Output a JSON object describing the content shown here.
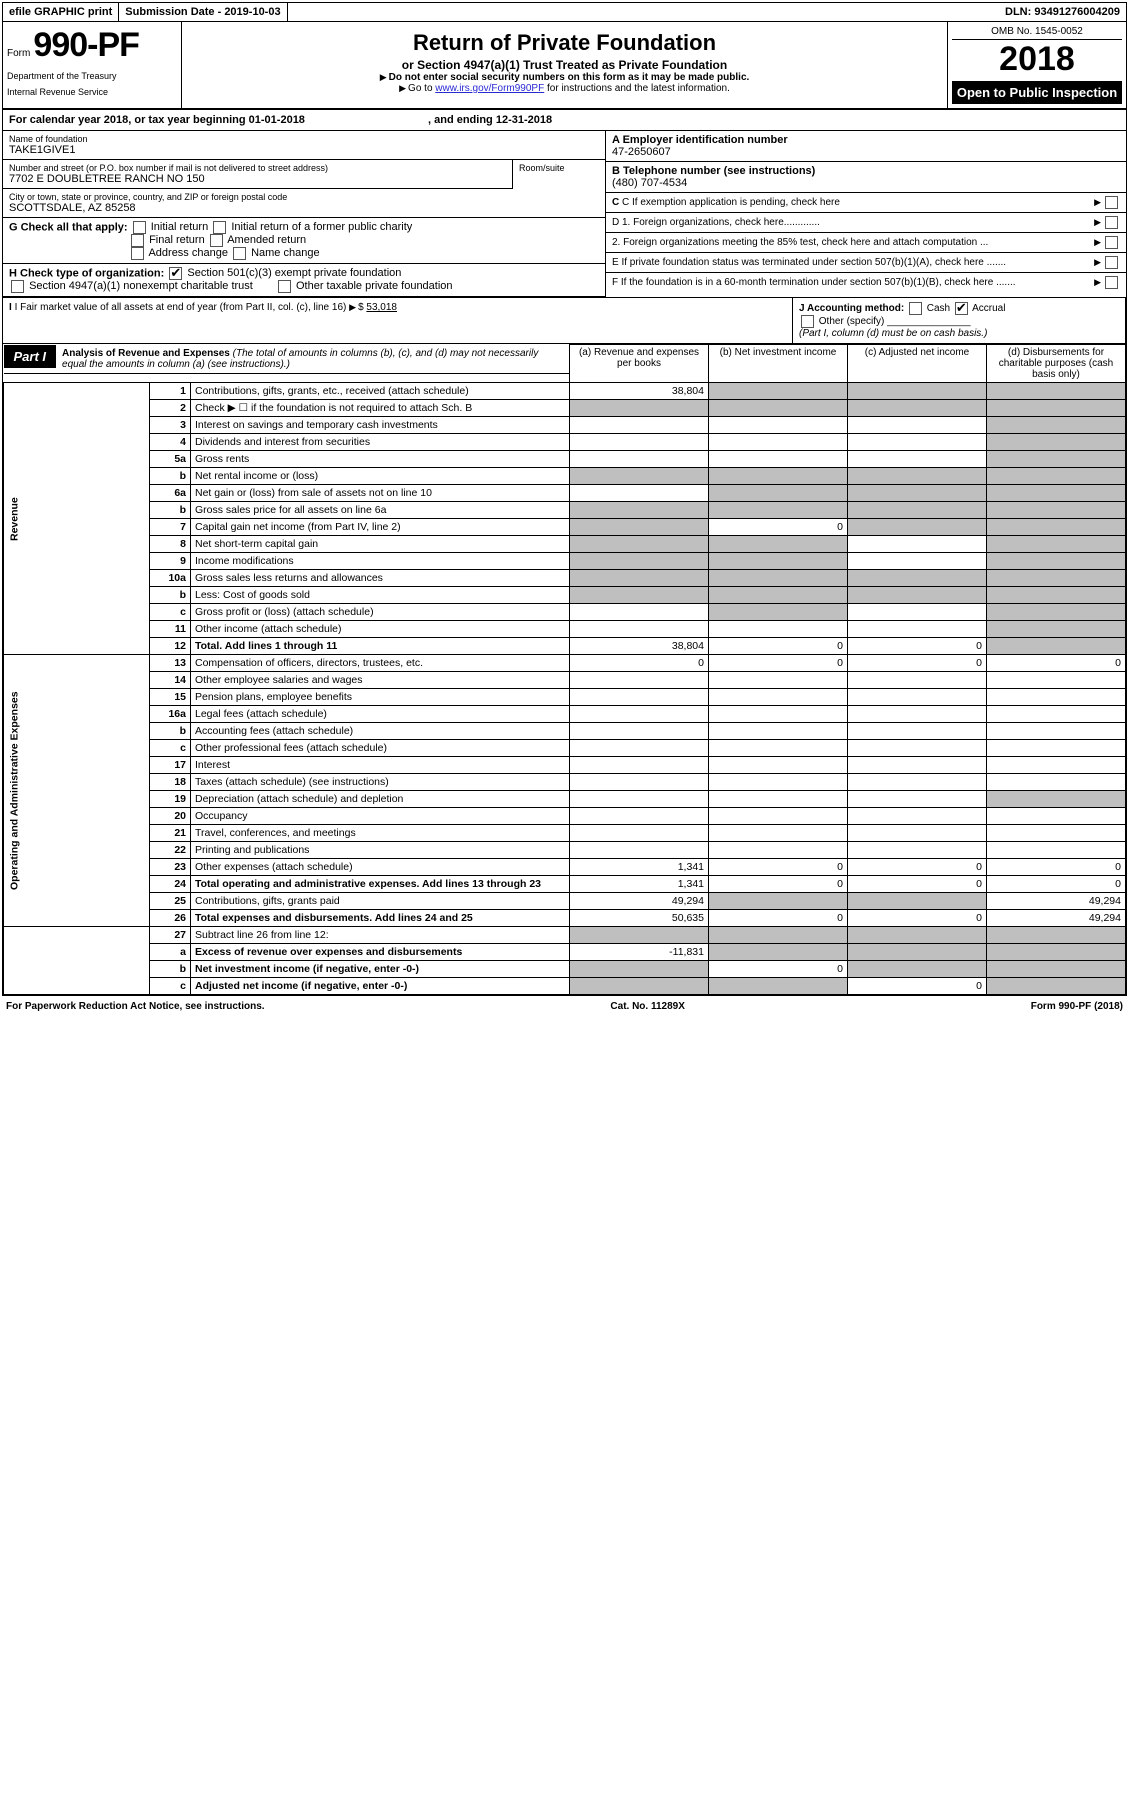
{
  "top_bar": {
    "efile": "efile GRAPHIC print",
    "submission": "Submission Date - 2019-10-03",
    "dln": "DLN: 93491276004209"
  },
  "header": {
    "form_label": "Form",
    "form_number": "990-PF",
    "dept_line1": "Department of the Treasury",
    "dept_line2": "Internal Revenue Service",
    "title": "Return of Private Foundation",
    "subtitle": "or Section 4947(a)(1) Trust Treated as Private Foundation",
    "instr1": "Do not enter social security numbers on this form as it may be made public.",
    "instr2_pre": "Go to ",
    "instr2_link": "www.irs.gov/Form990PF",
    "instr2_post": " for instructions and the latest information.",
    "omb": "OMB No. 1545-0052",
    "year": "2018",
    "open": "Open to Public Inspection"
  },
  "cal_year": {
    "label_pre": "For calendar year 2018, or tax year beginning ",
    "begin": "01-01-2018",
    "label_mid": " , and ending ",
    "end": "12-31-2018"
  },
  "name_block": {
    "label": "Name of foundation",
    "value": "TAKE1GIVE1"
  },
  "ein_block": {
    "label": "A Employer identification number",
    "value": "47-2650607"
  },
  "address_street": {
    "label": "Number and street (or P.O. box number if mail is not delivered to street address)",
    "room_label": "Room/suite",
    "value": "7702 E DOUBLETREE RANCH NO 150"
  },
  "phone_block": {
    "label": "B Telephone number (see instructions)",
    "value": "(480) 707-4534"
  },
  "city_block": {
    "label": "City or town, state or province, country, and ZIP or foreign postal code",
    "value": "SCOTTSDALE, AZ  85258"
  },
  "c_block": "C If exemption application is pending, check here",
  "g_checks": {
    "label": "G Check all that apply:",
    "items": [
      "Initial return",
      "Initial return of a former public charity",
      "Final return",
      "Amended return",
      "Address change",
      "Name change"
    ]
  },
  "d_block": {
    "d1": "D 1. Foreign organizations, check here.............",
    "d2": "2. Foreign organizations meeting the 85% test, check here and attach computation ..."
  },
  "h_block": {
    "label": "H Check type of organization:",
    "opt1": "Section 501(c)(3) exempt private foundation",
    "opt2": "Section 4947(a)(1) nonexempt charitable trust",
    "opt3": "Other taxable private foundation"
  },
  "e_block": "E If private foundation status was terminated under section 507(b)(1)(A), check here .......",
  "i_block": {
    "label": "I Fair market value of all assets at end of year (from Part II, col. (c), line 16)",
    "amt_label": "$",
    "amt": "53,018"
  },
  "j_block": {
    "label": "J Accounting method:",
    "cash": "Cash",
    "accrual": "Accrual",
    "other": "Other (specify)",
    "note": "(Part I, column (d) must be on cash basis.)"
  },
  "f_block": "F If the foundation is in a 60-month termination under section 507(b)(1)(B), check here .......",
  "part1": {
    "badge": "Part I",
    "title": "Analysis of Revenue and Expenses",
    "subtitle": "(The total of amounts in columns (b), (c), and (d) may not necessarily equal the amounts in column (a) (see instructions).)"
  },
  "columns": {
    "a": "(a) Revenue and expenses per books",
    "b": "(b) Net investment income",
    "c": "(c) Adjusted net income",
    "d": "(d) Disbursements for charitable purposes (cash basis only)"
  },
  "side_labels": {
    "revenue": "Revenue",
    "expenses": "Operating and Administrative Expenses"
  },
  "rows_revenue": [
    {
      "n": "1",
      "desc": "Contributions, gifts, grants, etc., received (attach schedule)",
      "a": "38,804",
      "b_shade": true,
      "c_shade": true,
      "d_shade": true
    },
    {
      "n": "2",
      "desc": "Check ▶ ☐ if the foundation is not required to attach Sch. B",
      "a_shade": true,
      "b_shade": true,
      "c_shade": true,
      "d_shade": true
    },
    {
      "n": "3",
      "desc": "Interest on savings and temporary cash investments",
      "d_shade": true
    },
    {
      "n": "4",
      "desc": "Dividends and interest from securities",
      "d_shade": true
    },
    {
      "n": "5a",
      "desc": "Gross rents",
      "d_shade": true
    },
    {
      "n": "b",
      "desc": "Net rental income or (loss)",
      "a_shade": true,
      "b_shade": true,
      "c_shade": true,
      "d_shade": true
    },
    {
      "n": "6a",
      "desc": "Net gain or (loss) from sale of assets not on line 10",
      "b_shade": true,
      "c_shade": true,
      "d_shade": true
    },
    {
      "n": "b",
      "desc": "Gross sales price for all assets on line 6a",
      "a_shade": true,
      "b_shade": true,
      "c_shade": true,
      "d_shade": true
    },
    {
      "n": "7",
      "desc": "Capital gain net income (from Part IV, line 2)",
      "a_shade": true,
      "b": "0",
      "c_shade": true,
      "d_shade": true
    },
    {
      "n": "8",
      "desc": "Net short-term capital gain",
      "a_shade": true,
      "b_shade": true,
      "d_shade": true
    },
    {
      "n": "9",
      "desc": "Income modifications",
      "a_shade": true,
      "b_shade": true,
      "d_shade": true
    },
    {
      "n": "10a",
      "desc": "Gross sales less returns and allowances",
      "a_shade": true,
      "b_shade": true,
      "c_shade": true,
      "d_shade": true
    },
    {
      "n": "b",
      "desc": "Less: Cost of goods sold",
      "a_shade": true,
      "b_shade": true,
      "c_shade": true,
      "d_shade": true
    },
    {
      "n": "c",
      "desc": "Gross profit or (loss) (attach schedule)",
      "b_shade": true,
      "d_shade": true
    },
    {
      "n": "11",
      "desc": "Other income (attach schedule)",
      "d_shade": true
    },
    {
      "n": "12",
      "desc": "Total. Add lines 1 through 11",
      "bold": true,
      "a": "38,804",
      "b": "0",
      "c": "0",
      "d_shade": true
    }
  ],
  "rows_expenses": [
    {
      "n": "13",
      "desc": "Compensation of officers, directors, trustees, etc.",
      "a": "0",
      "b": "0",
      "c": "0",
      "d": "0"
    },
    {
      "n": "14",
      "desc": "Other employee salaries and wages"
    },
    {
      "n": "15",
      "desc": "Pension plans, employee benefits"
    },
    {
      "n": "16a",
      "desc": "Legal fees (attach schedule)"
    },
    {
      "n": "b",
      "desc": "Accounting fees (attach schedule)"
    },
    {
      "n": "c",
      "desc": "Other professional fees (attach schedule)"
    },
    {
      "n": "17",
      "desc": "Interest"
    },
    {
      "n": "18",
      "desc": "Taxes (attach schedule) (see instructions)"
    },
    {
      "n": "19",
      "desc": "Depreciation (attach schedule) and depletion",
      "d_shade": true
    },
    {
      "n": "20",
      "desc": "Occupancy"
    },
    {
      "n": "21",
      "desc": "Travel, conferences, and meetings"
    },
    {
      "n": "22",
      "desc": "Printing and publications"
    },
    {
      "n": "23",
      "desc": "Other expenses (attach schedule)",
      "a": "1,341",
      "b": "0",
      "c": "0",
      "d": "0"
    },
    {
      "n": "24",
      "desc": "Total operating and administrative expenses. Add lines 13 through 23",
      "bold": true,
      "a": "1,341",
      "b": "0",
      "c": "0",
      "d": "0"
    },
    {
      "n": "25",
      "desc": "Contributions, gifts, grants paid",
      "a": "49,294",
      "b_shade": true,
      "c_shade": true,
      "d": "49,294"
    },
    {
      "n": "26",
      "desc": "Total expenses and disbursements. Add lines 24 and 25",
      "bold": true,
      "a": "50,635",
      "b": "0",
      "c": "0",
      "d": "49,294"
    }
  ],
  "rows_bottom": [
    {
      "n": "27",
      "desc": "Subtract line 26 from line 12:",
      "a_shade": true,
      "b_shade": true,
      "c_shade": true,
      "d_shade": true
    },
    {
      "n": "a",
      "desc": "Excess of revenue over expenses and disbursements",
      "bold": true,
      "a": "-11,831",
      "b_shade": true,
      "c_shade": true,
      "d_shade": true
    },
    {
      "n": "b",
      "desc": "Net investment income (if negative, enter -0-)",
      "bold": true,
      "a_shade": true,
      "b": "0",
      "c_shade": true,
      "d_shade": true
    },
    {
      "n": "c",
      "desc": "Adjusted net income (if negative, enter -0-)",
      "bold": true,
      "a_shade": true,
      "b_shade": true,
      "c": "0",
      "d_shade": true
    }
  ],
  "footer": {
    "left": "For Paperwork Reduction Act Notice, see instructions.",
    "center": "Cat. No. 11289X",
    "right": "Form 990-PF (2018)"
  }
}
